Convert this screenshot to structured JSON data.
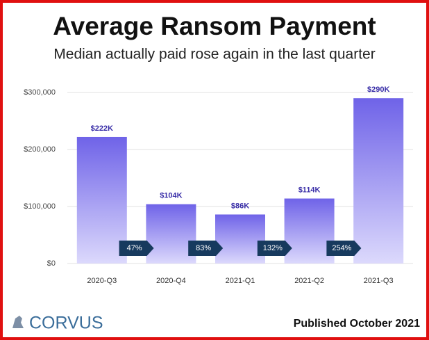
{
  "chart_data": {
    "type": "bar",
    "title": "Average Ransom Payment",
    "subtitle": "Median actually paid rose again in the last quarter",
    "categories": [
      "2020-Q3",
      "2020-Q4",
      "2021-Q1",
      "2021-Q2",
      "2021-Q3"
    ],
    "values": [
      222000,
      104000,
      86000,
      114000,
      290000
    ],
    "value_labels": [
      "$222K",
      "$104K",
      "$86K",
      "$114K",
      "$290K"
    ],
    "color": "#6f63e8",
    "ylim": [
      0,
      300000
    ],
    "yticks": [
      {
        "value": 0,
        "label": "$0"
      },
      {
        "value": 100000,
        "label": "$100,000"
      },
      {
        "value": 200000,
        "label": "$200,000"
      },
      {
        "value": 300000,
        "label": "$300,000"
      }
    ],
    "grid": true,
    "annotations": [
      "47%",
      "83%",
      "132%",
      "254%"
    ]
  },
  "footer": {
    "logo": "CORVUS",
    "note": "Published October 2021"
  }
}
